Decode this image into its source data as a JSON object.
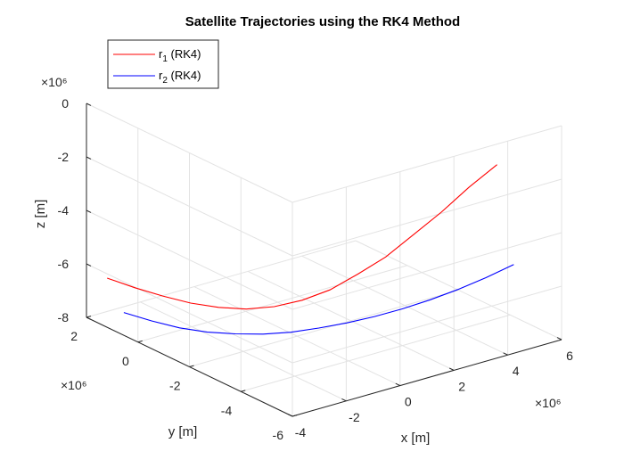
{
  "chart_data": {
    "type": "line",
    "title": "Satellite Trajectories using the RK4 Method",
    "xlabel": "x [m]",
    "ylabel": "y [m]",
    "zlabel": "z [m]",
    "x_exponent": "×10⁶",
    "y_exponent": "×10⁶",
    "z_exponent": "×10⁶",
    "xlim": [
      -4,
      6
    ],
    "ylim": [
      -6,
      2
    ],
    "zlim": [
      -8,
      0
    ],
    "x_ticks": [
      "-4",
      "-2",
      "0",
      "2",
      "4",
      "6"
    ],
    "y_ticks": [
      "2",
      "0",
      "-2",
      "-4",
      "-6"
    ],
    "z_ticks": [
      "0",
      "-2",
      "-4",
      "-6",
      "-8"
    ],
    "grid": true,
    "legend_position": "top-left",
    "series": [
      {
        "name": "r",
        "subscript": "1",
        "suffix": " (RK4)",
        "color": "#ff0000",
        "x": [
          -3.95,
          -3.25,
          -2.55,
          -1.85,
          -1.15,
          -0.45,
          0.25,
          0.95,
          1.65,
          2.35,
          3.05,
          3.75,
          4.45,
          5.15,
          5.85
        ],
        "y": [
          1.25,
          0.9,
          0.55,
          0.2,
          -0.15,
          -0.5,
          -0.85,
          -1.2,
          -1.55,
          -1.9,
          -2.25,
          -2.6,
          -2.95,
          -3.3,
          -3.65
        ],
        "z": [
          -6.2,
          -6.6,
          -6.95,
          -7.25,
          -7.45,
          -7.55,
          -7.5,
          -7.3,
          -6.95,
          -6.4,
          -5.8,
          -5.0,
          -4.2,
          -3.3,
          -2.5
        ]
      },
      {
        "name": "r",
        "subscript": "2",
        "suffix": " (RK4)",
        "color": "#0000ff",
        "x": [
          -4.0,
          -3.3,
          -2.6,
          -1.9,
          -1.2,
          -0.5,
          0.2,
          0.9,
          1.6,
          2.3,
          3.0,
          3.7,
          4.4,
          5.1,
          5.8
        ],
        "y": [
          0.55,
          0.2,
          -0.15,
          -0.5,
          -0.85,
          -1.2,
          -1.55,
          -1.9,
          -2.25,
          -2.6,
          -2.95,
          -3.3,
          -3.65,
          -4.0,
          -4.35
        ],
        "z": [
          -7.15,
          -7.5,
          -7.8,
          -8.0,
          -8.1,
          -8.15,
          -8.12,
          -8.0,
          -7.85,
          -7.65,
          -7.4,
          -7.1,
          -6.75,
          -6.35,
          -5.9
        ]
      }
    ]
  }
}
